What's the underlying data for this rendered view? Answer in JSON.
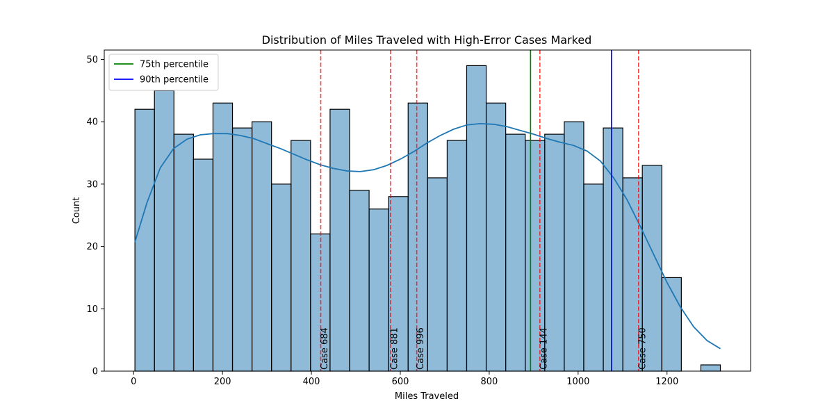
{
  "chart_data": {
    "type": "bar",
    "title": "Distribution of Miles Traveled with High-Error Cases Marked",
    "xlabel": "Miles Traveled",
    "ylabel": "Count",
    "xlim": [
      -66,
      1388
    ],
    "ylim": [
      0,
      51.5
    ],
    "xticks": [
      0,
      200,
      400,
      600,
      800,
      1000,
      1200
    ],
    "yticks": [
      0,
      10,
      20,
      30,
      40,
      50
    ],
    "grid": false,
    "legend_position": "top-left",
    "bins": {
      "start": 3,
      "width": 43.9,
      "counts": [
        42,
        45,
        38,
        34,
        43,
        39,
        40,
        30,
        37,
        22,
        42,
        29,
        26,
        28,
        43,
        31,
        37,
        49,
        43,
        38,
        37,
        38,
        40,
        30,
        39,
        31,
        33,
        15,
        0,
        1
      ]
    },
    "kde": {
      "x": [
        3,
        30,
        60,
        90,
        120,
        150,
        180,
        210,
        240,
        270,
        300,
        330,
        360,
        390,
        420,
        450,
        480,
        510,
        540,
        570,
        600,
        630,
        660,
        690,
        720,
        750,
        780,
        810,
        840,
        870,
        900,
        930,
        960,
        990,
        1020,
        1050,
        1080,
        1110,
        1140,
        1170,
        1200,
        1230,
        1260,
        1290,
        1320
      ],
      "y": [
        20.7,
        27.0,
        32.6,
        35.7,
        37.2,
        37.9,
        38.1,
        38.1,
        37.8,
        37.3,
        36.5,
        35.7,
        34.8,
        33.9,
        33.1,
        32.5,
        32.1,
        32.0,
        32.3,
        33.0,
        34.0,
        35.2,
        36.6,
        37.8,
        38.8,
        39.5,
        39.7,
        39.6,
        39.2,
        38.6,
        38.0,
        37.3,
        36.7,
        36.2,
        35.3,
        33.7,
        31.0,
        27.5,
        23.2,
        18.7,
        14.2,
        10.3,
        7.1,
        4.9,
        3.6
      ]
    },
    "percentiles": [
      {
        "name": "75th percentile",
        "value": 893,
        "color": "#008000"
      },
      {
        "name": "90th percentile",
        "value": 1075,
        "color": "#0000ff"
      }
    ],
    "cases": [
      {
        "label": "Case 684",
        "value": 421
      },
      {
        "label": "Case 881",
        "value": 578
      },
      {
        "label": "Case 996",
        "value": 637
      },
      {
        "label": "Case 144",
        "value": 914
      },
      {
        "label": "Case 750",
        "value": 1136
      }
    ],
    "colors": {
      "bar_fill": "#1f77b4",
      "bar_edge": "#000000",
      "kde": "#1f77b4",
      "case_line": "#ff0000"
    }
  }
}
